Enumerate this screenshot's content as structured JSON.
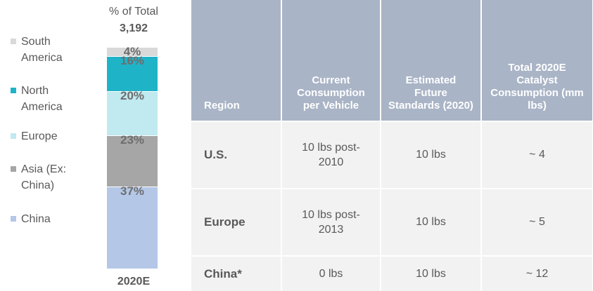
{
  "chart_data": {
    "type": "stacked-bar",
    "title": "% of Total",
    "total_label": "3,192",
    "categories": [
      "2020E"
    ],
    "series": [
      {
        "name": "South America",
        "color": "#d9d9d9",
        "values": [
          4
        ],
        "value_labels": [
          "4%"
        ]
      },
      {
        "name": "North America",
        "color": "#1fb3c8",
        "values": [
          16
        ],
        "value_labels": [
          "16%"
        ]
      },
      {
        "name": "Europe",
        "color": "#c0e9f0",
        "values": [
          20
        ],
        "value_labels": [
          "20%"
        ]
      },
      {
        "name": "Asia (Ex: China)",
        "color": "#a6a6a6",
        "values": [
          23
        ],
        "value_labels": [
          "23%"
        ]
      },
      {
        "name": "China",
        "color": "#b4c7e7",
        "values": [
          37
        ],
        "value_labels": [
          "37%"
        ]
      }
    ]
  },
  "table": {
    "header": [
      "Region",
      "Current Consumption per Vehicle",
      "Estimated Future Standards (2020)",
      "Total 2020E Catalyst Consumption (mm lbs)"
    ],
    "rows": [
      [
        "U.S.",
        "10 lbs post-2010",
        "10 lbs",
        "~ 4"
      ],
      [
        "Europe",
        "10 lbs post-2013",
        "10 lbs",
        "~ 5"
      ],
      [
        "China*",
        "0 lbs",
        "10 lbs",
        "~ 12"
      ]
    ]
  }
}
